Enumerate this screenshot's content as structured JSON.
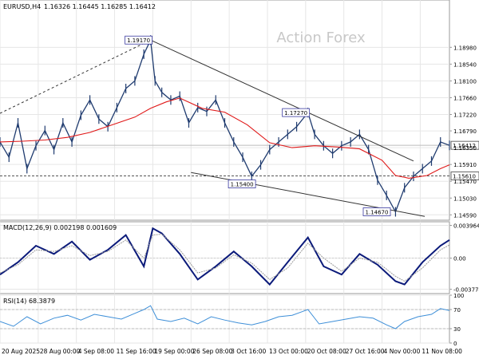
{
  "header": {
    "symbol": "EURUSD,H4",
    "ohlc": "1.16326 1.16445 1.16285 1.16412"
  },
  "watermark": "Action Forex",
  "colors": {
    "price": "#1f3b6f",
    "ma": "#e01818",
    "macd": "#0b1a7a",
    "signal": "#9a9a9a",
    "rsi": "#3e8fd8",
    "trendline": "#333333",
    "grid": "#e6e6e6",
    "border": "#9a9a9a",
    "level_box_fill": "#ffffff",
    "level_box_border": "#3a3aa0"
  },
  "chart_data": [
    {
      "type": "line",
      "panel": "price",
      "ylim": [
        1.1445,
        1.2022
      ],
      "ytick_values": [
        1.1459,
        1.1503,
        1.1547,
        1.1591,
        1.1635,
        1.1679,
        1.1722,
        1.1766,
        1.181,
        1.1854,
        1.1898
      ],
      "ytick_labels": [
        "1.14590",
        "1.15030",
        "1.15470",
        "1.15910",
        "1.16350",
        "1.16790",
        "1.17220",
        "1.17660",
        "1.18100",
        "1.18540",
        "1.18980"
      ],
      "current_price": {
        "value": 1.16412,
        "label": "1.16412"
      },
      "horizontal_level": {
        "value": 1.1561,
        "label": "1.15610"
      },
      "annotations": [
        {
          "label": "1.19170",
          "value": 1.1917,
          "x": 0.335
        },
        {
          "label": "1.17270",
          "value": 1.1727,
          "x": 0.685
        },
        {
          "label": "1.15400",
          "value": 1.154,
          "x": 0.565
        },
        {
          "label": "1.14670",
          "value": 1.1467,
          "x": 0.865
        }
      ],
      "trendlines": [
        {
          "style": "dashed",
          "x0": 0.0,
          "y0": 1.1725,
          "x1": 0.335,
          "y1": 1.1917
        },
        {
          "style": "solid",
          "x0": 0.335,
          "y0": 1.1917,
          "x1": 0.92,
          "y1": 1.16
        },
        {
          "style": "solid",
          "x0": 0.425,
          "y0": 1.157,
          "x1": 0.945,
          "y1": 1.1455
        }
      ],
      "series": [
        {
          "role": "price",
          "x": [
            0,
            0.02,
            0.04,
            0.06,
            0.08,
            0.1,
            0.12,
            0.14,
            0.16,
            0.18,
            0.2,
            0.22,
            0.24,
            0.26,
            0.28,
            0.3,
            0.32,
            0.335,
            0.345,
            0.36,
            0.38,
            0.4,
            0.42,
            0.44,
            0.46,
            0.48,
            0.5,
            0.52,
            0.54,
            0.56,
            0.58,
            0.6,
            0.62,
            0.64,
            0.66,
            0.685,
            0.7,
            0.72,
            0.74,
            0.76,
            0.78,
            0.8,
            0.82,
            0.84,
            0.86,
            0.88,
            0.9,
            0.92,
            0.94,
            0.96,
            0.98,
            1.0
          ],
          "y": [
            1.165,
            1.161,
            1.17,
            1.158,
            1.164,
            1.168,
            1.163,
            1.17,
            1.165,
            1.172,
            1.176,
            1.171,
            1.169,
            1.174,
            1.179,
            1.181,
            1.188,
            1.1917,
            1.181,
            1.178,
            1.176,
            1.177,
            1.17,
            1.174,
            1.173,
            1.176,
            1.17,
            1.165,
            1.161,
            1.156,
            1.159,
            1.163,
            1.165,
            1.167,
            1.169,
            1.1727,
            1.167,
            1.164,
            1.162,
            1.164,
            1.165,
            1.167,
            1.163,
            1.155,
            1.151,
            1.1467,
            1.153,
            1.156,
            1.158,
            1.16,
            1.165,
            1.1641
          ]
        },
        {
          "role": "ma",
          "x": [
            0,
            0.05,
            0.1,
            0.15,
            0.2,
            0.25,
            0.3,
            0.335,
            0.37,
            0.4,
            0.45,
            0.5,
            0.55,
            0.6,
            0.65,
            0.7,
            0.75,
            0.8,
            0.85,
            0.88,
            0.91,
            0.95,
            0.98,
            1.0
          ],
          "y": [
            1.165,
            1.1652,
            1.1655,
            1.1662,
            1.1675,
            1.1695,
            1.1715,
            1.1738,
            1.1755,
            1.1765,
            1.1738,
            1.1728,
            1.1695,
            1.1648,
            1.1635,
            1.164,
            1.1637,
            1.1632,
            1.1602,
            1.1562,
            1.1555,
            1.1562,
            1.158,
            1.159
          ]
        }
      ]
    },
    {
      "type": "line",
      "panel": "macd",
      "label": "MACD(12,26,9) 0.002198 0.001609",
      "ylim": [
        -0.0043,
        0.0044
      ],
      "ytick_values": [
        0.003964,
        0.0,
        -0.003774
      ],
      "ytick_labels": [
        "0.003964",
        "0.00",
        "-0.003774"
      ],
      "series": [
        {
          "role": "macd",
          "x": [
            0,
            0.04,
            0.08,
            0.12,
            0.16,
            0.2,
            0.24,
            0.28,
            0.32,
            0.34,
            0.36,
            0.4,
            0.44,
            0.48,
            0.52,
            0.56,
            0.6,
            0.64,
            0.685,
            0.72,
            0.76,
            0.8,
            0.84,
            0.88,
            0.9,
            0.94,
            0.98,
            1.0
          ],
          "y": [
            -0.002,
            -0.0005,
            0.0015,
            0.0005,
            0.002,
            -0.0002,
            0.001,
            0.0028,
            -0.001,
            0.0036,
            0.003,
            0.0005,
            -0.0026,
            -0.001,
            0.0008,
            -0.001,
            -0.0032,
            -0.0005,
            0.0025,
            -0.001,
            -0.002,
            0.0005,
            -0.0008,
            -0.0028,
            -0.0032,
            -0.0005,
            0.0015,
            0.0022
          ]
        },
        {
          "role": "signal",
          "x": [
            0,
            0.04,
            0.08,
            0.12,
            0.16,
            0.2,
            0.24,
            0.28,
            0.32,
            0.34,
            0.36,
            0.4,
            0.44,
            0.48,
            0.52,
            0.56,
            0.6,
            0.64,
            0.685,
            0.72,
            0.76,
            0.8,
            0.84,
            0.88,
            0.9,
            0.94,
            0.98,
            1.0
          ],
          "y": [
            -0.0018,
            -0.0008,
            0.001,
            0.0008,
            0.0015,
            0.0003,
            0.0008,
            0.0022,
            0.0,
            0.0028,
            0.0029,
            0.001,
            -0.0018,
            -0.0012,
            0.0004,
            -0.0006,
            -0.0026,
            -0.0012,
            0.0018,
            0.0,
            -0.0016,
            0.0,
            -0.0005,
            -0.0022,
            -0.0028,
            -0.0012,
            0.001,
            0.0016
          ]
        }
      ]
    },
    {
      "type": "line",
      "panel": "rsi",
      "label": "RSI(14) 68.3879",
      "ylim": [
        0,
        100
      ],
      "ytick_values": [
        100,
        70,
        30,
        0
      ],
      "ytick_labels": [
        "100",
        "70",
        "30",
        "0"
      ],
      "series": [
        {
          "role": "rsi",
          "x": [
            0,
            0.03,
            0.06,
            0.09,
            0.12,
            0.15,
            0.18,
            0.21,
            0.24,
            0.27,
            0.3,
            0.32,
            0.335,
            0.35,
            0.38,
            0.41,
            0.44,
            0.47,
            0.5,
            0.53,
            0.56,
            0.59,
            0.62,
            0.65,
            0.685,
            0.71,
            0.74,
            0.77,
            0.8,
            0.83,
            0.86,
            0.88,
            0.9,
            0.93,
            0.96,
            0.98,
            1.0
          ],
          "y": [
            45,
            35,
            55,
            40,
            52,
            58,
            48,
            60,
            55,
            50,
            62,
            70,
            78,
            50,
            45,
            52,
            40,
            55,
            48,
            42,
            38,
            45,
            55,
            58,
            70,
            40,
            45,
            50,
            55,
            52,
            38,
            30,
            45,
            55,
            60,
            72,
            68
          ]
        }
      ]
    }
  ],
  "x_axis": {
    "tick_labels": [
      "20 Aug 2025",
      "28 Aug 00:00",
      "4 Sep 08:00",
      "11 Sep 16:00",
      "19 Sep 00:00",
      "26 Sep 08:00",
      "3 Oct 16:00",
      "13 Oct 00:00",
      "20 Oct 08:00",
      "27 Oct 16:00",
      "4 Nov 00:00",
      "11 Nov 08:00"
    ],
    "tick_positions": [
      0.0,
      0.085,
      0.17,
      0.255,
      0.34,
      0.425,
      0.51,
      0.595,
      0.68,
      0.765,
      0.85,
      0.935
    ]
  }
}
